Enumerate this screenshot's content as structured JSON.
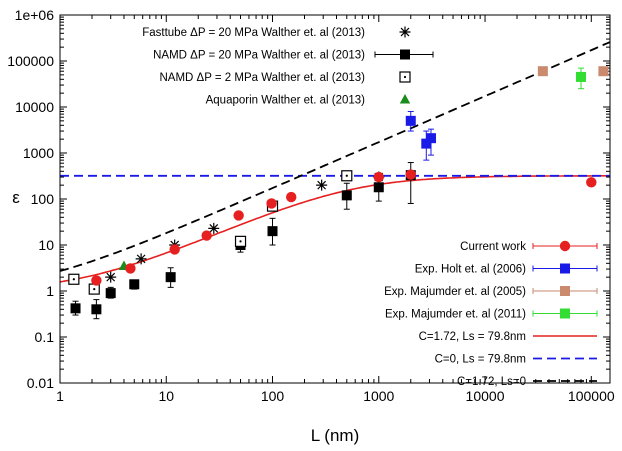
{
  "chart_data": {
    "type": "scatter",
    "title": "",
    "xlabel": "L (nm)",
    "ylabel": "ε",
    "xscale": "log",
    "yscale": "log",
    "xlim": [
      1,
      150000
    ],
    "ylim": [
      0.01,
      1000000
    ],
    "x_ticks": [
      1,
      10,
      100,
      1000,
      10000,
      100000
    ],
    "x_tick_labels": [
      "1",
      "10",
      "100",
      "1000",
      "10000",
      "100000"
    ],
    "y_ticks": [
      0.01,
      0.1,
      1,
      10,
      100,
      1000,
      10000,
      100000,
      1000000
    ],
    "y_tick_labels": [
      "0.01",
      "0.1",
      "1",
      "10",
      "100",
      "1000",
      "10000",
      "100000",
      "1e+06"
    ],
    "legend_top_left": [
      {
        "name": "Fasttube ΔP = 20 MPa Walther et. al (2013)",
        "marker": "star",
        "color": "#000000"
      },
      {
        "name": "NAMD ΔP = 20 MPa Walther et. al (2013)",
        "marker": "filled-square",
        "color": "#000000"
      },
      {
        "name": "NAMD ΔP = 2 MPa Walther et. al (2013)",
        "marker": "dotted-square",
        "color": "#000000"
      },
      {
        "name": "Aquaporin Walther et. al (2013)",
        "marker": "triangle",
        "color": "#1a8c1a"
      }
    ],
    "legend_bottom_right": [
      {
        "name": "Current work",
        "marker": "circle",
        "color": "#e62020"
      },
      {
        "name": "Exp. Holt et. al (2006)",
        "marker": "filled-square",
        "color": "#1a1ae6"
      },
      {
        "name": "Exp. Majumder et. al (2005)",
        "marker": "filled-square",
        "color": "#c98a6e"
      },
      {
        "name": "Exp. Majumder et. al (2011)",
        "marker": "filled-square",
        "color": "#33dd33"
      },
      {
        "name": "C=1.72, Ls = 79.8nm",
        "line": "solid",
        "color": "#e62020"
      },
      {
        "name": "C=0, Ls = 79.8nm",
        "line": "dashed",
        "color": "#1a1ae6"
      },
      {
        "name": "C=1.72, Ls=0",
        "line": "dashed",
        "color": "#000000"
      }
    ],
    "series": [
      {
        "name": "Fasttube ΔP = 20 MPa Walther et. al (2013)",
        "marker": "star",
        "color": "#000000",
        "points": [
          [
            3,
            2
          ],
          [
            5.8,
            5
          ],
          [
            12,
            10
          ],
          [
            28,
            23
          ],
          [
            290,
            200
          ],
          [
            1000,
            300
          ]
        ]
      },
      {
        "name": "NAMD ΔP = 20 MPa Walther et. al (2013)",
        "marker": "filled-square",
        "color": "#000000",
        "points": [
          [
            1.4,
            0.42,
            0.3,
            0.6
          ],
          [
            2.2,
            0.4,
            0.25,
            0.65
          ],
          [
            3,
            0.9,
            0.7,
            1.2
          ],
          [
            5,
            1.4,
            1.1,
            1.7
          ],
          [
            11,
            2,
            1.2,
            3.2
          ],
          [
            50,
            10,
            7,
            13
          ],
          [
            100,
            20,
            10,
            38
          ],
          [
            500,
            120,
            60,
            220
          ],
          [
            1000,
            180,
            90,
            350
          ],
          [
            2000,
            330,
            80,
            620
          ]
        ]
      },
      {
        "name": "NAMD ΔP = 2 MPa Walther et. al (2013)",
        "marker": "dotted-square",
        "color": "#000000",
        "points": [
          [
            1.35,
            1.8
          ],
          [
            2.1,
            1.1
          ],
          [
            50,
            12
          ],
          [
            100,
            70
          ],
          [
            500,
            320
          ]
        ]
      },
      {
        "name": "Aquaporin Walther et. al (2013)",
        "marker": "triangle",
        "color": "#1a8c1a",
        "points": [
          [
            4,
            3.5
          ]
        ]
      },
      {
        "name": "Current work",
        "marker": "circle",
        "color": "#e62020",
        "points": [
          [
            2.2,
            1.7
          ],
          [
            4.6,
            3.1
          ],
          [
            12,
            8
          ],
          [
            24,
            16
          ],
          [
            48,
            44
          ],
          [
            98,
            80
          ],
          [
            150,
            110
          ],
          [
            1000,
            300
          ],
          [
            2000,
            340
          ],
          [
            100000,
            230
          ]
        ]
      },
      {
        "name": "Exp. Holt et. al (2006)",
        "marker": "filled-square",
        "color": "#1a1ae6",
        "points": [
          [
            2000,
            5000,
            3000,
            8000
          ],
          [
            2800,
            1600,
            700,
            3000
          ],
          [
            3100,
            2100,
            900,
            3300
          ]
        ]
      },
      {
        "name": "Exp. Majumder et. al (2005)",
        "marker": "filled-square",
        "color": "#c98a6e",
        "points": [
          [
            35000,
            60000
          ],
          [
            130000,
            60000
          ]
        ]
      },
      {
        "name": "Exp. Majumder et. al (2011)",
        "marker": "filled-square",
        "color": "#33dd33",
        "points": [
          [
            80000,
            45000,
            25000,
            70000
          ]
        ]
      }
    ],
    "lines": [
      {
        "name": "C=1.72, Ls = 79.8nm",
        "style": "solid",
        "color": "#e62020",
        "C": 1.72,
        "Ls": 79.8
      },
      {
        "name": "C=0, Ls = 79.8nm",
        "style": "dashed",
        "color": "#1a1ae6",
        "C": 0,
        "Ls": 79.8
      },
      {
        "name": "C=1.72, Ls=0",
        "style": "dashed",
        "color": "#000000",
        "C": 1.72,
        "Ls": 0
      }
    ],
    "grid": false,
    "legend_position": [
      "top-left",
      "bottom-right"
    ]
  }
}
